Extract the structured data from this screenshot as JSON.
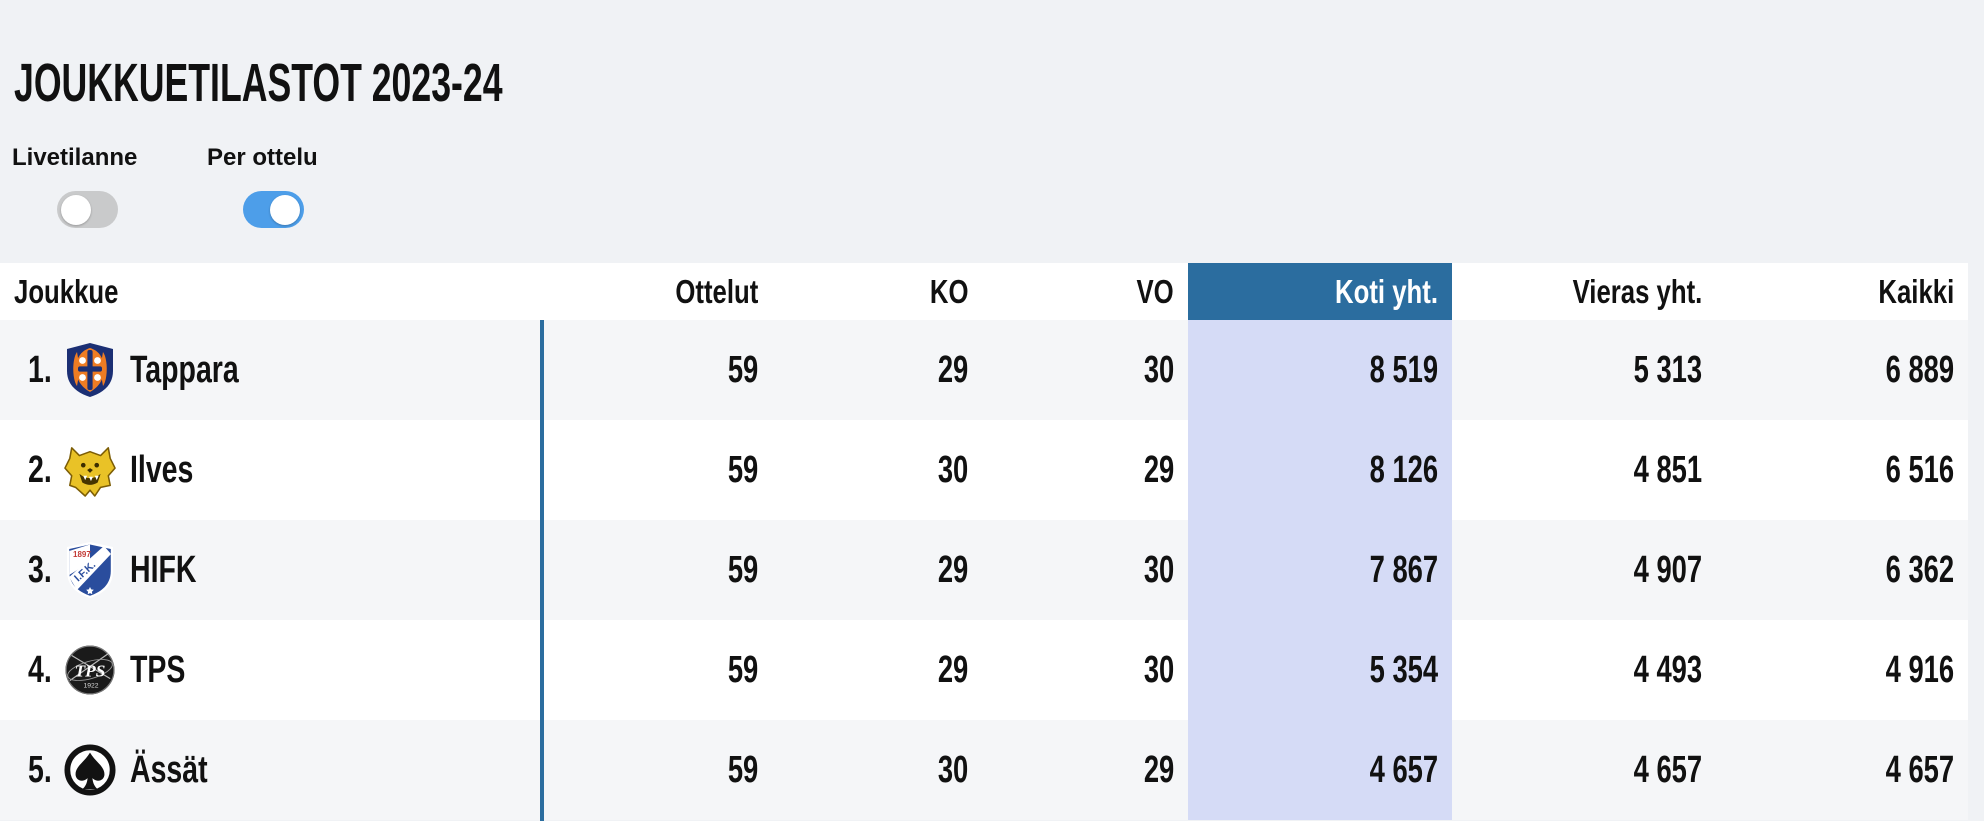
{
  "header": {
    "title": "JOUKKUETILASTOT 2023-24",
    "toggles": [
      {
        "label": "Livetilanne",
        "state": "off"
      },
      {
        "label": "Per ottelu",
        "state": "on"
      }
    ]
  },
  "table": {
    "columns": [
      {
        "label": "Joukkue",
        "highlighted": false
      },
      {
        "label": "Ottelut",
        "highlighted": false
      },
      {
        "label": "KO",
        "highlighted": false
      },
      {
        "label": "VO",
        "highlighted": false
      },
      {
        "label": "Koti yht.",
        "highlighted": true
      },
      {
        "label": "Vieras yht.",
        "highlighted": false
      },
      {
        "label": "Kaikki",
        "highlighted": false
      }
    ],
    "rows": [
      {
        "rank": "1.",
        "team": "Tappara",
        "logo": "tappara-logo",
        "stats": [
          "59",
          "29",
          "30",
          "8 519",
          "5 313",
          "6 889"
        ]
      },
      {
        "rank": "2.",
        "team": "Ilves",
        "logo": "ilves-logo",
        "stats": [
          "59",
          "30",
          "29",
          "8 126",
          "4 851",
          "6 516"
        ]
      },
      {
        "rank": "3.",
        "team": "HIFK",
        "logo": "hifk-logo",
        "stats": [
          "59",
          "29",
          "30",
          "7 867",
          "4 907",
          "6 362"
        ]
      },
      {
        "rank": "4.",
        "team": "TPS",
        "logo": "tps-logo",
        "stats": [
          "59",
          "29",
          "30",
          "5 354",
          "4 493",
          "4 916"
        ]
      },
      {
        "rank": "5.",
        "team": "Ässät",
        "logo": "assat-logo",
        "stats": [
          "59",
          "30",
          "29",
          "4 657",
          "4 657",
          "4 657"
        ]
      }
    ]
  },
  "colors": {
    "header_highlight": "#2b6d9f",
    "column_highlight": "#d5dbf6",
    "divider": "#2b6d9f",
    "toggle_on": "#4d9ee9",
    "toggle_off": "#c9cacb",
    "row_stripe": "#f5f6f8",
    "page_background": "#f0f2f5"
  }
}
